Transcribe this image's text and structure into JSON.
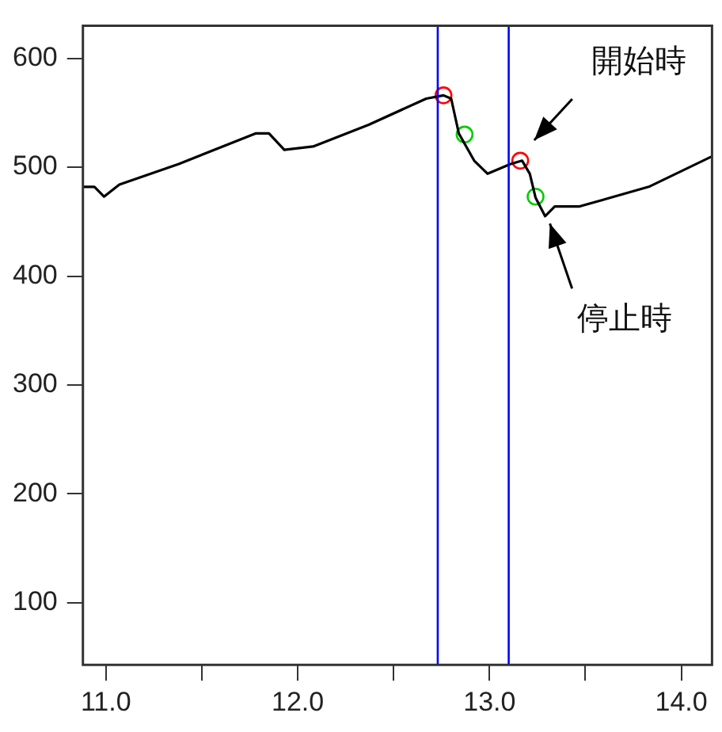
{
  "chart_data": {
    "type": "line",
    "xlim": [
      10.88,
      14.16
    ],
    "ylim": [
      43,
      630
    ],
    "xticks": [
      {
        "value": 11,
        "label": "11.0"
      },
      {
        "value": 11.5,
        "label": null
      },
      {
        "value": 12,
        "label": "12.0"
      },
      {
        "value": 12.5,
        "label": null
      },
      {
        "value": 13,
        "label": "13.0"
      },
      {
        "value": 13.5,
        "label": null
      },
      {
        "value": 14,
        "label": "14.0"
      }
    ],
    "yticks": [
      100,
      200,
      300,
      400,
      500,
      600
    ],
    "grid": false,
    "legend": false,
    "series": [
      {
        "color": "#000000",
        "marker": "none",
        "x": [
          10.88,
          10.94,
          10.99,
          11.07,
          11.38,
          11.78,
          11.85,
          11.93,
          12.08,
          12.37,
          12.67,
          12.76,
          12.8,
          12.84,
          12.92,
          12.99,
          13.11,
          13.17,
          13.21,
          13.24,
          13.29,
          13.34,
          13.47,
          13.83,
          14.16
        ],
        "values": [
          482,
          482,
          473,
          484,
          503,
          531,
          531,
          516,
          519,
          539,
          563,
          566,
          563,
          531,
          506,
          494,
          503,
          506,
          494,
          472,
          455,
          464,
          464,
          482,
          510
        ]
      },
      {
        "type": "scatter",
        "color": "#ff0000",
        "marker": "circle",
        "x": [
          12.76,
          13.16
        ],
        "values": [
          566,
          506
        ]
      },
      {
        "type": "scatter",
        "color": "#00cc00",
        "marker": "circle",
        "x": [
          12.87,
          13.24
        ],
        "values": [
          530,
          473
        ]
      }
    ],
    "ref_lines": [
      {
        "axis": "x",
        "value": 12.73,
        "color": "#0000ff"
      },
      {
        "axis": "x",
        "value": 13.1,
        "color": "#0000ff"
      }
    ],
    "annotations": [
      {
        "text": "開始時",
        "x": 13.2,
        "y": 516
      },
      {
        "text": "停止時",
        "x": 13.29,
        "y": 454
      }
    ]
  }
}
